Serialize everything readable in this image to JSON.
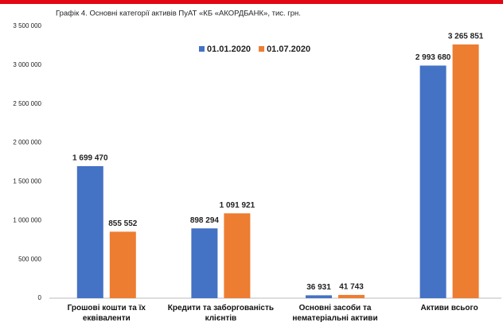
{
  "chart_data": {
    "type": "bar",
    "title": "Графік 4. Основні категорії активів ПуАТ «КБ «АКОРДБАНК», тис. грн.",
    "categories": [
      "Грошові кошти та їх еквіваленти",
      "Кредити та заборгованість клієнтів",
      "Основні засоби та нематеріальні активи",
      "Активи всього"
    ],
    "series": [
      {
        "name": "01.01.2020",
        "color": "#4472c4",
        "values": [
          1699470,
          898294,
          36931,
          2993680
        ],
        "value_labels": [
          "1 699 470",
          "898 294",
          "36 931",
          "2 993 680"
        ]
      },
      {
        "name": "01.07.2020",
        "color": "#ed7d31",
        "values": [
          855552,
          1091921,
          41743,
          3265851
        ],
        "value_labels": [
          "855 552",
          "1 091 921",
          "41 743",
          "3 265 851"
        ]
      }
    ],
    "ylim": [
      0,
      3500000
    ],
    "yticks": [
      0,
      {
        "value": 500000,
        "label": "500 000"
      },
      {
        "value": 1000000,
        "label": "1 000 000"
      },
      {
        "value": 1500000,
        "label": "1 500 000"
      },
      {
        "value": 2000000,
        "label": "2 000 000"
      },
      {
        "value": 2500000,
        "label": "2 500 000"
      },
      {
        "value": 3000000,
        "label": "3 000 000"
      },
      {
        "value": 3500000,
        "label": "3 500 000"
      }
    ],
    "grid": false,
    "legend": "top"
  }
}
